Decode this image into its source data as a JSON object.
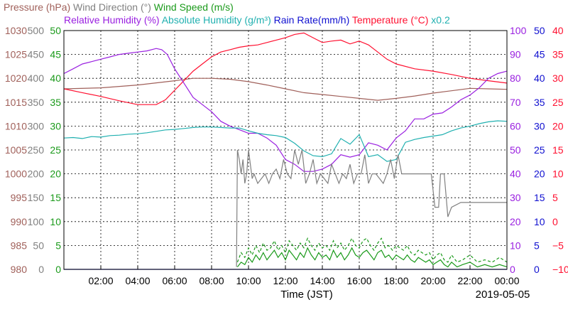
{
  "chart_data": {
    "type": "line",
    "title_line1": [
      {
        "text": "Pressure (hPa)",
        "color": "#a0605a"
      },
      {
        "text": "Wind Direction (°)",
        "color": "#808080"
      },
      {
        "text": "Wind Speed (m/s)",
        "color": "#1a9a1a"
      }
    ],
    "title_line2": [
      {
        "text": "Relative Humidity (%)",
        "color": "#9a20e0"
      },
      {
        "text": "Absolute Humidity (g/m³)",
        "color": "#20b0b0"
      },
      {
        "text": "Rain Rate(mm/h)",
        "color": "#1010d0"
      },
      {
        "text": "Temperature (°C)",
        "color": "#ff1030"
      },
      {
        "text": "x0.2",
        "color": "#20b0b0"
      }
    ],
    "xlabel": "Time (JST)",
    "date": "2019-05-05",
    "x_ticks": [
      "02:00",
      "04:00",
      "06:00",
      "08:00",
      "10:00",
      "12:00",
      "14:00",
      "16:00",
      "18:00",
      "20:00",
      "22:00",
      "00:00"
    ],
    "xlim_hours": [
      0,
      24
    ],
    "left_axes": [
      {
        "name": "pressure",
        "color": "#a0605a",
        "ticks": [
          "1030",
          "1025",
          "1020",
          "1015",
          "1010",
          "1005",
          "1000",
          "995",
          "990",
          "985",
          "980"
        ]
      },
      {
        "name": "wind-direction",
        "color": "#808080",
        "ticks": [
          "500",
          "450",
          "400",
          "350",
          "300",
          "250",
          "200",
          "150",
          "100",
          "50",
          "0"
        ]
      },
      {
        "name": "wind-speed",
        "color": "#1a9a1a",
        "ticks": [
          "50",
          "45",
          "40",
          "35",
          "30",
          "25",
          "20",
          "15",
          "10",
          "5",
          "0"
        ]
      }
    ],
    "right_axes": [
      {
        "name": "relative-humidity",
        "color": "#9a20e0",
        "ticks": [
          "100",
          "90",
          "80",
          "70",
          "60",
          "50",
          "40",
          "30",
          "20",
          "10",
          "0"
        ]
      },
      {
        "name": "rain-rate",
        "color": "#1010d0",
        "ticks": [
          "50",
          "45",
          "40",
          "35",
          "30",
          "25",
          "20",
          "15",
          "10",
          "5",
          "0"
        ]
      },
      {
        "name": "temperature",
        "color": "#ff1030",
        "ticks": [
          "40",
          "35",
          "30",
          "25",
          "20",
          "15",
          "10",
          "5",
          "0",
          "−5",
          "−10"
        ]
      }
    ],
    "series": [
      {
        "name": "Pressure (hPa)",
        "color": "#a0605a",
        "ylim": [
          980,
          1030
        ],
        "x": [
          0,
          2,
          4,
          6,
          7,
          8,
          9,
          10,
          11,
          12,
          13,
          14,
          15,
          16,
          17,
          18,
          19,
          20,
          21,
          22,
          23,
          24
        ],
        "y": [
          1017.8,
          1018,
          1018.6,
          1019.5,
          1020,
          1020,
          1019.8,
          1019.3,
          1018.6,
          1017.8,
          1017,
          1016.6,
          1016.2,
          1015.8,
          1015.4,
          1015.8,
          1016.3,
          1016.9,
          1017.4,
          1017.9,
          1017.8,
          1017.7
        ]
      },
      {
        "name": "Temperature (°C)",
        "color": "#ff1030",
        "ylim": [
          -10,
          40
        ],
        "x": [
          0,
          1,
          2,
          3,
          4,
          5,
          5.5,
          6,
          6.5,
          7,
          7.5,
          8,
          8.5,
          9,
          9.5,
          10,
          10.5,
          11,
          11.5,
          12,
          12.5,
          13,
          13.5,
          14,
          14.5,
          15,
          15.5,
          16,
          16.5,
          17,
          17.5,
          18,
          19,
          20,
          21,
          22,
          23,
          24
        ],
        "y": [
          27.8,
          27,
          26.2,
          25.3,
          24.5,
          24.5,
          25.5,
          27.5,
          29.5,
          31.5,
          33,
          34.5,
          35.5,
          36,
          36.5,
          36.8,
          37,
          37.5,
          38,
          38.5,
          39.2,
          39.5,
          38.5,
          37.5,
          37.8,
          38,
          37.2,
          37.8,
          37,
          35.5,
          34,
          33,
          32,
          31.5,
          30.8,
          30,
          29.5,
          29
        ]
      },
      {
        "name": "Relative Humidity (%)",
        "color": "#9a20e0",
        "ylim": [
          0,
          100
        ],
        "x": [
          0,
          0.5,
          1,
          1.5,
          2,
          2.5,
          3,
          3.5,
          4,
          4.5,
          5,
          5.3,
          5.6,
          6,
          6.5,
          7,
          7.5,
          8,
          8.5,
          9,
          9.5,
          10,
          10.5,
          11,
          11.5,
          12,
          12.5,
          13,
          13.5,
          14,
          14.5,
          15,
          15.5,
          16,
          16.5,
          17,
          17.5,
          18,
          18.5,
          19,
          19.5,
          20,
          20.5,
          21,
          21.5,
          22,
          22.5,
          23,
          23.5,
          24
        ],
        "y": [
          82,
          84,
          86,
          87,
          88,
          89,
          90,
          90.5,
          91,
          91.5,
          92.5,
          92,
          90,
          84,
          78,
          72,
          69,
          66,
          62,
          60,
          58.5,
          57,
          57,
          55,
          52,
          46,
          44,
          41,
          41,
          42,
          44,
          48,
          47,
          48,
          53,
          52,
          50,
          55,
          58,
          63,
          63,
          65,
          65.5,
          68,
          71,
          73,
          76,
          80,
          82,
          83
        ]
      },
      {
        "name": "Absolute Humidity (g/m³)",
        "color": "#20b0b0",
        "ylim": [
          0,
          500
        ],
        "x": [
          0,
          0.5,
          1,
          1.5,
          2,
          2.5,
          3,
          3.5,
          4,
          4.5,
          5,
          5.5,
          6,
          6.5,
          7,
          7.5,
          8,
          8.5,
          9,
          9.5,
          10,
          10.5,
          11,
          11.5,
          12,
          12.5,
          13,
          13.5,
          14,
          14.5,
          15,
          15.5,
          16,
          16.5,
          17,
          17.5,
          18,
          18.5,
          19,
          19.5,
          20,
          20.5,
          21,
          21.5,
          22,
          22.5,
          23,
          23.5,
          24
        ],
        "y": [
          275,
          276,
          274,
          278,
          277,
          280,
          281,
          283,
          284,
          286,
          289,
          292,
          293,
          295,
          297,
          298,
          298,
          297,
          296,
          296,
          290,
          285,
          282,
          280,
          276,
          264,
          248,
          238,
          236,
          242,
          274,
          262,
          282,
          236,
          240,
          226,
          230,
          266,
          272,
          276,
          279,
          282,
          290,
          296,
          300,
          305,
          309,
          311,
          310
        ]
      },
      {
        "name": "Wind Direction (°)",
        "color": "#808080",
        "ylim": [
          0,
          500
        ],
        "x": [
          9.35,
          9.4,
          9.5,
          9.6,
          9.7,
          9.8,
          9.9,
          10,
          10.2,
          10.3,
          10.5,
          10.7,
          10.9,
          11.1,
          11.3,
          11.5,
          11.7,
          11.9,
          12.1,
          12.3,
          12.5,
          12.7,
          12.9,
          13.1,
          13.3,
          13.5,
          13.7,
          13.9,
          14.1,
          14.3,
          14.5,
          14.7,
          14.9,
          15.1,
          15.3,
          15.5,
          15.7,
          15.9,
          16.1,
          16.3,
          16.5,
          16.7,
          16.9,
          17.1,
          17.3,
          17.5,
          17.7,
          17.9,
          18.1,
          18.3,
          18.5,
          18.7,
          18.9,
          19.1,
          19.3,
          19.5,
          19.7,
          19.9,
          20.1,
          20.3,
          20.4,
          20.6,
          20.8,
          21,
          21.5,
          22,
          22.5,
          23,
          23.5,
          24
        ],
        "y": [
          5,
          250,
          230,
          200,
          230,
          180,
          200,
          250,
          190,
          200,
          180,
          190,
          200,
          180,
          200,
          210,
          190,
          230,
          200,
          190,
          250,
          220,
          250,
          180,
          200,
          230,
          180,
          200,
          190,
          180,
          220,
          200,
          180,
          200,
          190,
          220,
          180,
          200,
          200,
          240,
          180,
          200,
          200,
          190,
          180,
          200,
          230,
          190,
          240,
          200,
          200,
          200,
          200,
          200,
          200,
          200,
          200,
          200,
          130,
          130,
          200,
          200,
          110,
          130,
          140,
          140,
          140,
          140,
          140,
          140
        ]
      },
      {
        "name": "Wind Speed (m/s)",
        "color": "#1a9a1a",
        "ylim": [
          0,
          50
        ],
        "x": [
          9.4,
          9.6,
          9.8,
          10,
          10.2,
          10.4,
          10.6,
          10.8,
          11,
          11.2,
          11.4,
          11.6,
          11.8,
          12,
          12.2,
          12.4,
          12.6,
          12.8,
          13,
          13.2,
          13.4,
          13.6,
          13.8,
          14,
          14.2,
          14.4,
          14.6,
          14.8,
          15,
          15.2,
          15.4,
          15.6,
          15.8,
          16,
          16.2,
          16.4,
          16.6,
          16.8,
          17,
          17.2,
          17.4,
          17.6,
          17.8,
          18,
          18.2,
          18.4,
          18.6,
          18.8,
          19,
          19.2,
          19.4,
          19.6,
          19.8,
          20,
          20.2,
          20.4,
          20.6,
          20.8,
          21,
          21.3,
          21.6,
          22,
          22.4,
          22.8,
          23.2,
          23.6,
          24
        ],
        "y": [
          0.5,
          1.5,
          1,
          2.5,
          1.5,
          3,
          2,
          3.5,
          2,
          3,
          4,
          2.5,
          3.5,
          2,
          4,
          3,
          2,
          3.5,
          2.5,
          4.5,
          3,
          2,
          3.5,
          2.5,
          3,
          2,
          4,
          2.5,
          3.5,
          2,
          3,
          4.5,
          3,
          2.5,
          3.5,
          4,
          3,
          2,
          3.5,
          4,
          2.5,
          3,
          2,
          3,
          2.5,
          2,
          3,
          2,
          1.5,
          2.5,
          2,
          1.5,
          2,
          1,
          1.5,
          2,
          1,
          0.5,
          1.5,
          0.5,
          1,
          1.5,
          0.5,
          1,
          0.5,
          1,
          0.5
        ]
      },
      {
        "name": "Wind Speed gust (m/s)",
        "color": "#1a9a1a",
        "dashed": true,
        "ylim": [
          0,
          50
        ],
        "x": [
          9.4,
          9.6,
          9.8,
          10,
          10.2,
          10.4,
          10.6,
          10.8,
          11,
          11.2,
          11.4,
          11.6,
          11.8,
          12,
          12.2,
          12.4,
          12.6,
          12.8,
          13,
          13.2,
          13.4,
          13.6,
          13.8,
          14,
          14.2,
          14.4,
          14.6,
          14.8,
          15,
          15.2,
          15.4,
          15.6,
          15.8,
          16,
          16.2,
          16.4,
          16.6,
          16.8,
          17,
          17.2,
          17.4,
          17.6,
          17.8,
          18,
          18.2,
          18.4,
          18.6,
          18.8,
          19,
          19.2,
          19.4,
          19.6,
          19.8,
          20,
          20.2,
          20.4,
          20.6,
          20.8,
          21,
          21.3,
          21.6,
          22,
          22.4,
          22.8,
          23.2,
          23.6,
          24
        ],
        "y": [
          1.5,
          3.5,
          2.5,
          4.5,
          3,
          5,
          3.5,
          5.5,
          4,
          4.5,
          6,
          4,
          5,
          3.5,
          6,
          5,
          4,
          5.5,
          4.5,
          6.5,
          5,
          4,
          5.5,
          4.5,
          5,
          4,
          6,
          4.5,
          5.5,
          4,
          5,
          6.5,
          5,
          4.5,
          6,
          6.5,
          5,
          4,
          5.5,
          6.5,
          4.5,
          5,
          4,
          5,
          4.5,
          4,
          5,
          3.5,
          3,
          4,
          3.5,
          3,
          3.5,
          2,
          3,
          3.5,
          2,
          1.5,
          3,
          1.5,
          2,
          3,
          1.5,
          2,
          1.5,
          2.5,
          1.5
        ]
      },
      {
        "name": "Rain Rate(mm/h)",
        "color": "#1010d0",
        "ylim": [
          0,
          50
        ],
        "x": [
          0,
          24
        ],
        "y": [
          0,
          0
        ]
      }
    ]
  }
}
